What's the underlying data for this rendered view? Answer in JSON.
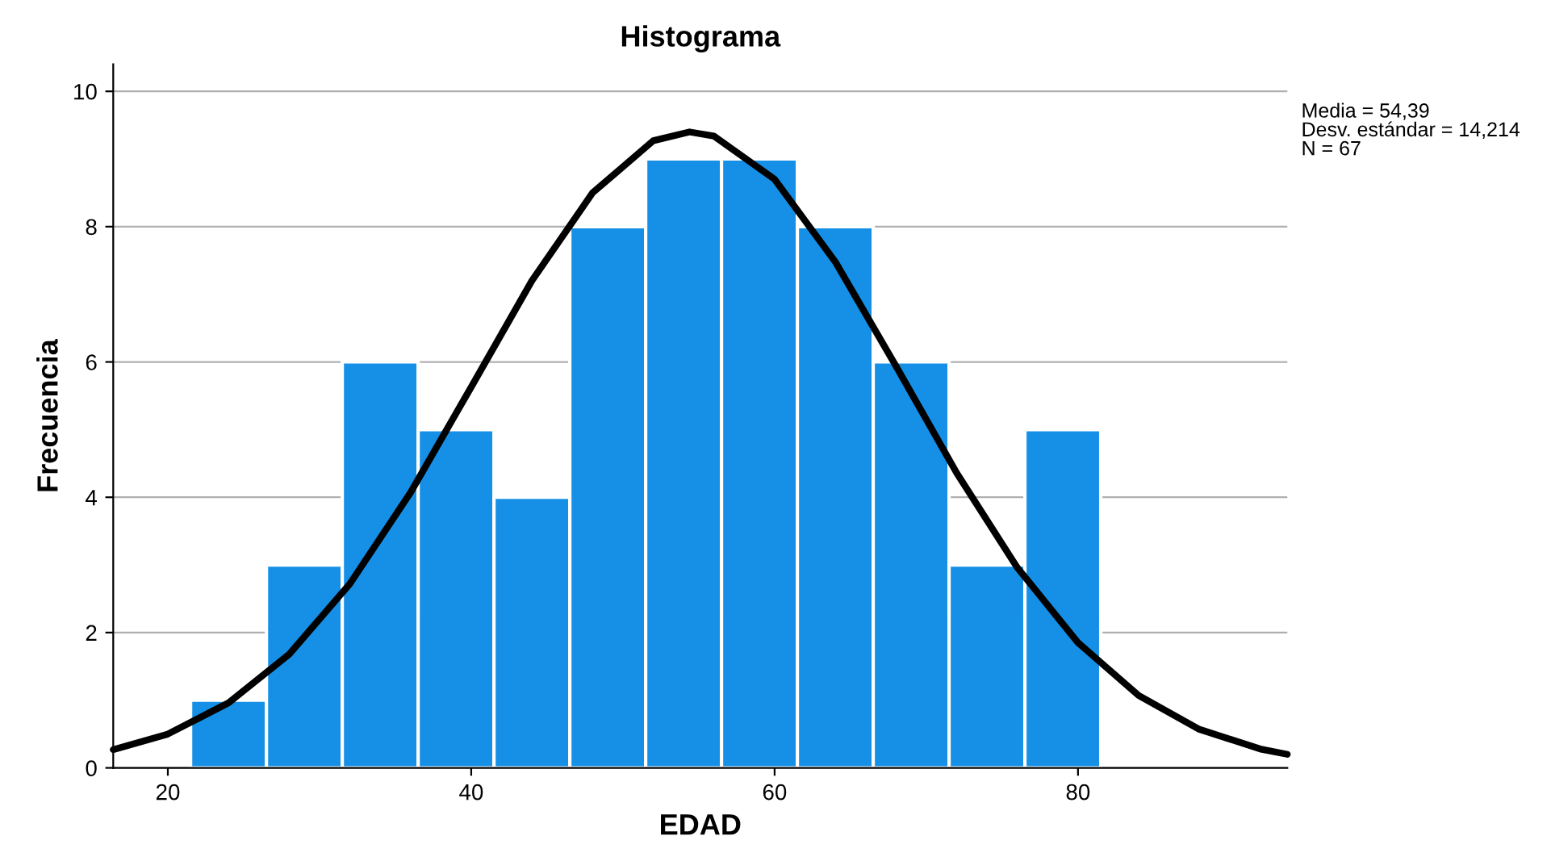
{
  "chart_data": {
    "type": "histogram",
    "title": "Histograma",
    "xlabel": "EDAD",
    "ylabel": "Frecuencia",
    "bins": [
      21.5,
      26.5,
      31.5,
      36.5,
      41.5,
      46.5,
      51.5,
      56.5,
      61.5,
      66.5,
      71.5,
      76.5,
      81.5
    ],
    "values": [
      1,
      3,
      6,
      5,
      4,
      8,
      9,
      9,
      8,
      6,
      3,
      5
    ],
    "color": "#1590e6",
    "series": [
      {
        "type": "line",
        "color": "#000000",
        "x": [
          16.4,
          20,
          24,
          28,
          32,
          36,
          40,
          44,
          48,
          52,
          54.39,
          56,
          60,
          64,
          68,
          72,
          76,
          80,
          84,
          88,
          92,
          93.8
        ],
        "values": [
          0.27,
          0.5,
          0.96,
          1.68,
          2.72,
          4.07,
          5.63,
          7.2,
          8.5,
          9.27,
          9.4,
          9.34,
          8.7,
          7.48,
          5.94,
          4.36,
          2.96,
          1.85,
          1.07,
          0.57,
          0.28,
          0.2
        ]
      }
    ],
    "xlim": [
      16.4,
      93.8
    ],
    "xticks": [
      20,
      40,
      60,
      80
    ],
    "ylim": [
      0,
      10.4
    ],
    "yticks": [
      0,
      2,
      4,
      6,
      8,
      10
    ],
    "grid": "y",
    "annotations": [
      "Media = 54,39",
      "Desv. estándar = 14,214",
      "N = 67"
    ]
  }
}
